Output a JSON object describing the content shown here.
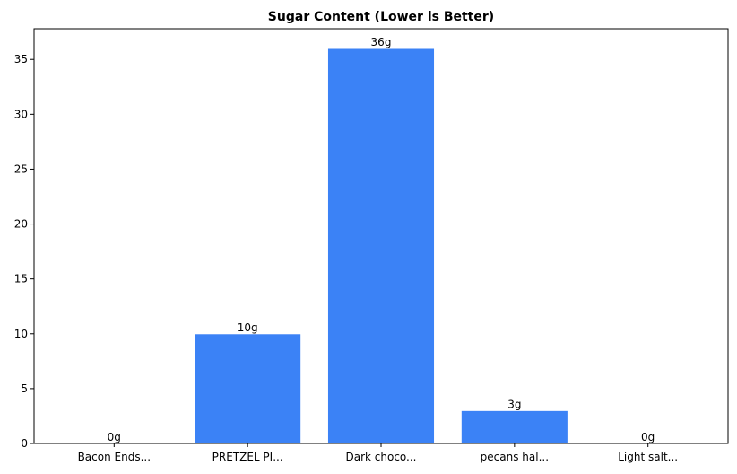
{
  "chart_data": {
    "type": "bar",
    "title": "Sugar Content (Lower is Better)",
    "xlabel": "",
    "ylabel": "",
    "categories": [
      "Bacon Ends...",
      "PRETZEL PI...",
      "Dark choco...",
      "pecans hal...",
      "Light salt..."
    ],
    "values": [
      0,
      10,
      36,
      3,
      0
    ],
    "data_labels": [
      "0g",
      "10g",
      "36g",
      "3g",
      "0g"
    ],
    "ylim": [
      0,
      37.8
    ],
    "yticks": [
      0,
      5,
      10,
      15,
      20,
      25,
      30,
      35
    ],
    "ytick_labels": [
      "0",
      "5",
      "10",
      "15",
      "20",
      "25",
      "30",
      "35"
    ],
    "grid": false,
    "legend": "none",
    "colors": {
      "bar_fill": "#3b82f6",
      "bar_edge": "#ffffff",
      "axis": "#000000",
      "text": "#000000"
    }
  }
}
